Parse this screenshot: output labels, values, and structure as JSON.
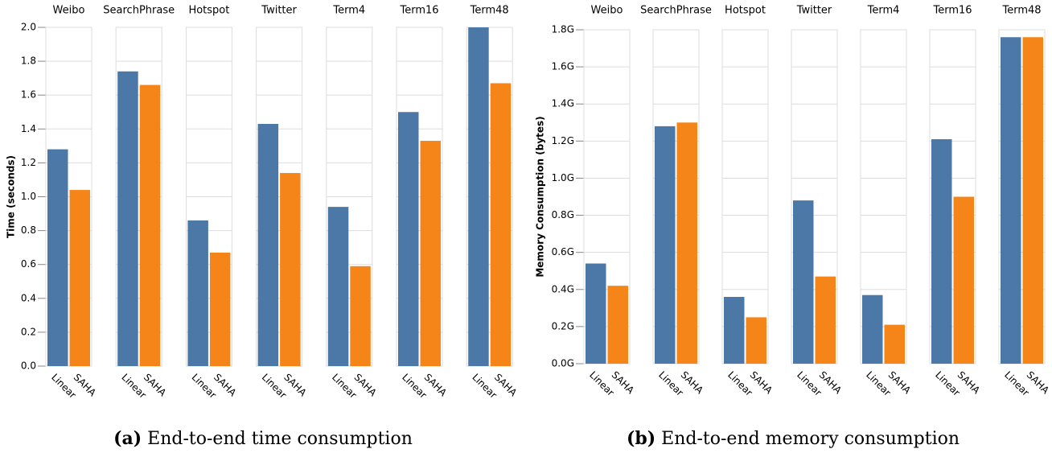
{
  "chart_data": [
    {
      "type": "bar",
      "caption_label": "(a)",
      "caption": "End-to-end time consumption",
      "yaxis_label": "Time (seconds)",
      "categories": [
        "Weibo",
        "SearchPhrase",
        "Hotspot",
        "Twitter",
        "Term4",
        "Term16",
        "Term48"
      ],
      "series": [
        {
          "name": "Linear",
          "color": "#4c78a8",
          "values": [
            1.28,
            1.74,
            0.86,
            1.43,
            0.94,
            1.5,
            2.0
          ]
        },
        {
          "name": "SAHA",
          "color": "#f58518",
          "values": [
            1.04,
            1.66,
            0.67,
            1.14,
            0.59,
            1.33,
            1.67
          ]
        }
      ],
      "ylim": [
        0,
        2
      ],
      "yticks": [
        {
          "value": 0,
          "label": "0.0"
        },
        0.2,
        0.4,
        0.6,
        0.8,
        {
          "value": 1,
          "label": "1.0"
        },
        1.2,
        1.4,
        1.6,
        1.8,
        {
          "value": 2,
          "label": "2.0"
        }
      ],
      "grid": true
    },
    {
      "type": "bar",
      "caption_label": "(b)",
      "caption": "End-to-end memory consumption",
      "yaxis_label": "Memory Consumption (bytes)",
      "categories": [
        "Weibo",
        "SearchPhrase",
        "Hotspot",
        "Twitter",
        "Term4",
        "Term16",
        "Term48"
      ],
      "series": [
        {
          "name": "Linear",
          "color": "#4c78a8",
          "values": [
            540000000,
            1280000000,
            360000000,
            880000000,
            370000000,
            1210000000,
            1760000000
          ]
        },
        {
          "name": "SAHA",
          "color": "#f58518",
          "values": [
            420000000,
            1300000000,
            250000000,
            470000000,
            210000000,
            900000000,
            1760000000
          ]
        }
      ],
      "ylim": [
        0,
        1800000000
      ],
      "yticks": [
        {
          "value": 0,
          "label": "0.0G"
        },
        {
          "value": 200000000,
          "label": "0.2G"
        },
        {
          "value": 400000000,
          "label": "0.4G"
        },
        {
          "value": 600000000,
          "label": "0.6G"
        },
        {
          "value": 800000000,
          "label": "0.8G"
        },
        {
          "value": 1000000000,
          "label": "1.0G"
        },
        {
          "value": 1200000000,
          "label": "1.2G"
        },
        {
          "value": 1400000000,
          "label": "1.4G"
        },
        {
          "value": 1600000000,
          "label": "1.6G"
        },
        {
          "value": 1800000000,
          "label": "1.8G"
        }
      ],
      "grid": true
    }
  ]
}
